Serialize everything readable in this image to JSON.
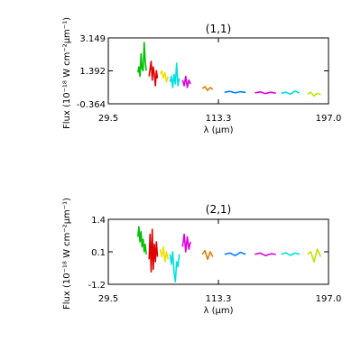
{
  "chart_data": [
    {
      "type": "line",
      "title": "(1,1)",
      "xlabel": "λ (μm)",
      "ylabel": "Flux (10⁻¹⁸ W cm⁻²μm⁻¹)",
      "xlim": [
        29.5,
        197.0
      ],
      "ylim": [
        -0.364,
        3.149
      ],
      "xticks": [
        "29.5",
        "113.3",
        "197.0"
      ],
      "yticks": [
        "3.149",
        "1.392",
        "-0.364"
      ],
      "grid": false,
      "series": [
        {
          "color": "#00c000",
          "x": [
            52.0,
            52.8,
            53.6,
            54.4,
            55.2,
            56.0,
            56.8,
            57.6,
            58.4
          ],
          "y": [
            1.3,
            1.6,
            1.1,
            2.3,
            1.5,
            1.4,
            2.9,
            1.9,
            1.4
          ]
        },
        {
          "color": "#e00000",
          "x": [
            60.5,
            61.3,
            62.1,
            62.9,
            63.7,
            64.5,
            65.3,
            66.1,
            66.9
          ],
          "y": [
            1.1,
            1.5,
            1.9,
            0.9,
            1.6,
            1.2,
            0.6,
            1.4,
            1.0
          ]
        },
        {
          "color": "#f0e000",
          "x": [
            69.0,
            70.2,
            71.4,
            72.6,
            73.8,
            75.0
          ],
          "y": [
            1.2,
            1.4,
            1.0,
            1.3,
            0.8,
            1.1
          ]
        },
        {
          "color": "#00e0e0",
          "x": [
            76.5,
            77.5,
            78.5,
            79.5,
            80.5,
            81.5,
            82.5,
            83.5
          ],
          "y": [
            0.8,
            1.1,
            0.5,
            1.2,
            0.7,
            1.8,
            0.6,
            1.0
          ]
        },
        {
          "color": "#e000e0",
          "x": [
            86.0,
            87.2,
            88.4,
            89.6,
            90.8,
            92.0
          ],
          "y": [
            0.9,
            0.6,
            1.1,
            0.5,
            0.9,
            0.7
          ]
        },
        {
          "color": "#e08000",
          "x": [
            101.0,
            103.0,
            105.0,
            107.0,
            109.0
          ],
          "y": [
            0.45,
            0.55,
            0.35,
            0.5,
            0.4
          ]
        },
        {
          "color": "#0080ff",
          "x": [
            118.0,
            122.0,
            126.0,
            130.0,
            134.0
          ],
          "y": [
            0.25,
            0.3,
            0.22,
            0.28,
            0.24
          ]
        },
        {
          "color": "#e000e0",
          "x": [
            141.0,
            145.0,
            149.0,
            153.0,
            157.0
          ],
          "y": [
            0.22,
            0.27,
            0.18,
            0.25,
            0.2
          ]
        },
        {
          "color": "#00e0e0",
          "x": [
            161.0,
            164.5,
            168.0,
            171.5,
            175.0
          ],
          "y": [
            0.2,
            0.25,
            0.15,
            0.32,
            0.2
          ]
        },
        {
          "color": "#c0e000",
          "x": [
            181.0,
            183.5,
            186.0,
            188.5,
            191.0
          ],
          "y": [
            0.15,
            0.25,
            0.05,
            0.2,
            0.12
          ]
        }
      ]
    },
    {
      "type": "line",
      "title": "(2,1)",
      "xlabel": "λ (μm)",
      "ylabel": "Flux (10⁻¹⁸ W cm⁻²μm⁻¹)",
      "xlim": [
        29.5,
        197.0
      ],
      "ylim": [
        -1.2,
        1.4
      ],
      "xticks": [
        "29.5",
        "113.3",
        "197.0"
      ],
      "yticks": [
        "1.4",
        "0.1",
        "-1.2"
      ],
      "grid": false,
      "series": [
        {
          "color": "#00c000",
          "x": [
            52.0,
            52.8,
            53.6,
            54.4,
            55.2,
            56.0,
            56.8,
            57.6,
            58.4
          ],
          "y": [
            0.7,
            1.1,
            0.5,
            0.9,
            0.3,
            0.6,
            0.1,
            0.4,
            0.0
          ]
        },
        {
          "color": "#e00000",
          "x": [
            60.5,
            61.3,
            62.1,
            62.9,
            63.7,
            64.5,
            65.3,
            66.1,
            66.9
          ],
          "y": [
            -0.2,
            0.8,
            -0.7,
            1.0,
            -0.6,
            0.4,
            -0.3,
            0.5,
            -0.1
          ]
        },
        {
          "color": "#f0e000",
          "x": [
            69.0,
            70.2,
            71.4,
            72.6,
            73.8,
            75.0
          ],
          "y": [
            0.2,
            -0.1,
            0.3,
            -0.3,
            0.1,
            -0.2
          ]
        },
        {
          "color": "#00e0e0",
          "x": [
            76.5,
            77.5,
            78.5,
            79.5,
            80.5,
            81.5,
            82.5,
            83.5
          ],
          "y": [
            0.0,
            -0.4,
            0.1,
            -0.7,
            -1.1,
            -0.3,
            -0.5,
            0.0
          ]
        },
        {
          "color": "#e000e0",
          "x": [
            86.0,
            87.2,
            88.4,
            89.6,
            90.8,
            92.0
          ],
          "y": [
            0.3,
            0.8,
            0.1,
            0.7,
            0.2,
            0.5
          ]
        },
        {
          "color": "#e08000",
          "x": [
            101.0,
            103.0,
            105.0,
            107.0,
            109.0
          ],
          "y": [
            0.0,
            0.15,
            -0.2,
            0.1,
            -0.1
          ]
        },
        {
          "color": "#0080ff",
          "x": [
            118.0,
            122.0,
            126.0,
            130.0,
            134.0
          ],
          "y": [
            0.0,
            0.05,
            -0.05,
            0.08,
            0.0
          ]
        },
        {
          "color": "#e000e0",
          "x": [
            141.0,
            145.0,
            149.0,
            153.0,
            157.0
          ],
          "y": [
            0.0,
            0.05,
            -0.05,
            0.02,
            0.0
          ]
        },
        {
          "color": "#00e0e0",
          "x": [
            161.0,
            164.5,
            168.0,
            171.5,
            175.0
          ],
          "y": [
            0.0,
            0.06,
            -0.04,
            0.05,
            0.0
          ]
        },
        {
          "color": "#c0e000",
          "x": [
            181.0,
            183.5,
            186.0,
            188.5,
            191.0
          ],
          "y": [
            0.0,
            0.1,
            -0.3,
            0.2,
            -0.1
          ]
        }
      ]
    }
  ]
}
